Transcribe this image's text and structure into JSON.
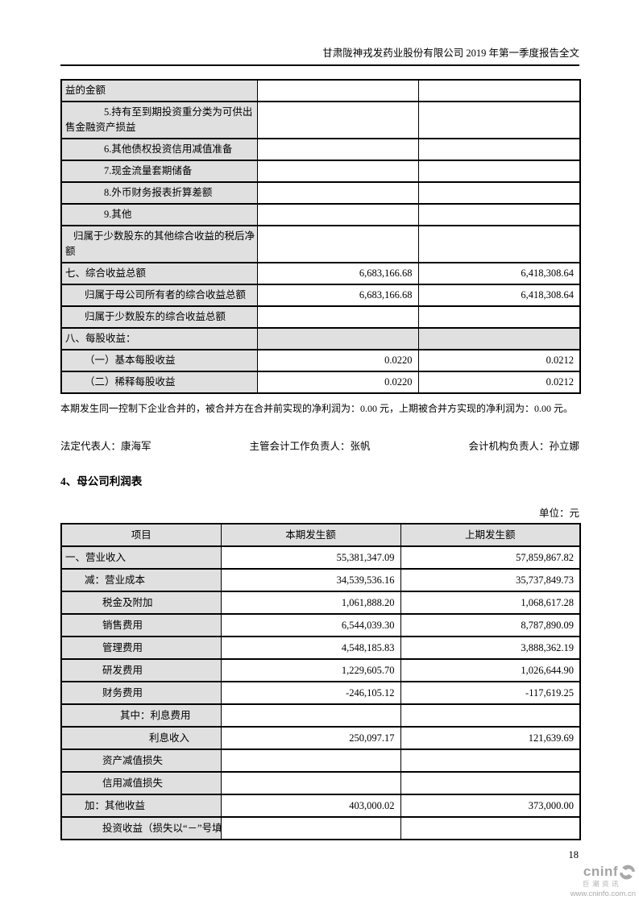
{
  "doc_header": {
    "title": "甘肃陇神戎发药业股份有限公司 2019 年第一季度报告全文"
  },
  "income_statement_continued": {
    "rows": [
      {
        "label": "益的金额",
        "style": "i0",
        "current": "",
        "prior": ""
      },
      {
        "label": "5.持有至到期投资重分类为可供出售金融资产损益",
        "style": "h3",
        "current": "",
        "prior": ""
      },
      {
        "label": "6.其他债权投资信用减值准备",
        "style": "h3",
        "current": "",
        "prior": ""
      },
      {
        "label": "7.现金流量套期储备",
        "style": "h3",
        "current": "",
        "prior": ""
      },
      {
        "label": "8.外币财务报表折算差额",
        "style": "h3",
        "current": "",
        "prior": ""
      },
      {
        "label": "9.其他",
        "style": "h3",
        "current": "",
        "prior": ""
      },
      {
        "label": "归属于少数股东的其他综合收益的税后净额",
        "style": "h0",
        "current": "",
        "prior": ""
      },
      {
        "label": "七、综合收益总额",
        "style": "i0",
        "current": "6,683,166.68",
        "prior": "6,418,308.64"
      },
      {
        "label": "归属于母公司所有者的综合收益总额",
        "style": "i1",
        "current": "6,683,166.68",
        "prior": "6,418,308.64"
      },
      {
        "label": "归属于少数股东的综合收益总额",
        "style": "i1",
        "current": "",
        "prior": ""
      },
      {
        "label": "八、每股收益：",
        "style": "i0",
        "current": "",
        "prior": "",
        "shaded": true
      },
      {
        "label": "（一）基本每股收益",
        "style": "i1",
        "current": "0.0220",
        "prior": "0.0212"
      },
      {
        "label": "（二）稀释每股收益",
        "style": "i1",
        "current": "0.0220",
        "prior": "0.0212"
      }
    ]
  },
  "merger_note": "本期发生同一控制下企业合并的，被合并方在合并前实现的净利润为：0.00 元，上期被合并方实现的净利润为：0.00 元。",
  "signatures": {
    "legal_representative": "法定代表人：康海军",
    "chief_accounting_officer": "主管会计工作负责人：张帆",
    "accounting_dept_head": "会计机构负责人：孙立娜"
  },
  "section": {
    "title": "4、母公司利润表",
    "unit_label": "单位：元"
  },
  "parent_income_table": {
    "headers": [
      "项目",
      "本期发生额",
      "上期发生额"
    ],
    "rows": [
      {
        "label": "一、营业收入",
        "style": "i0",
        "current": "55,381,347.09",
        "prior": "57,859,867.82"
      },
      {
        "label": "减：营业成本",
        "style": "i1",
        "current": "34,539,536.16",
        "prior": "35,737,849.73"
      },
      {
        "label": "税金及附加",
        "style": "i3",
        "current": "1,061,888.20",
        "prior": "1,068,617.28"
      },
      {
        "label": "销售费用",
        "style": "i3",
        "current": "6,544,039.30",
        "prior": "8,787,890.09"
      },
      {
        "label": "管理费用",
        "style": "i3",
        "current": "4,548,185.83",
        "prior": "3,888,362.19"
      },
      {
        "label": "研发费用",
        "style": "i3",
        "current": "1,229,605.70",
        "prior": "1,026,644.90"
      },
      {
        "label": "财务费用",
        "style": "i3",
        "current": "-246,105.12",
        "prior": "-117,619.25"
      },
      {
        "label": "其中：利息费用",
        "style": "i4",
        "current": "",
        "prior": ""
      },
      {
        "label": "利息收入",
        "style": "i5",
        "current": "250,097.17",
        "prior": "121,639.69"
      },
      {
        "label": "资产减值损失",
        "style": "i3",
        "current": "",
        "prior": ""
      },
      {
        "label": "信用减值损失",
        "style": "i3",
        "current": "",
        "prior": ""
      },
      {
        "label": "加：其他收益",
        "style": "i1",
        "current": "403,000.02",
        "prior": "373,000.00"
      },
      {
        "label": "投资收益（损失以“－”号填",
        "style": "i3 nw",
        "current": "",
        "prior": ""
      }
    ]
  },
  "footer": {
    "page_number": "18",
    "logo_text": "cninf",
    "logo_subtitle": "巨潮资讯",
    "logo_url": "www.cninfo.com.cn"
  },
  "colors": {
    "cell_shading": "#e0e0e0",
    "table_border": "#000000",
    "logo_gray": "#a8a8a8"
  }
}
